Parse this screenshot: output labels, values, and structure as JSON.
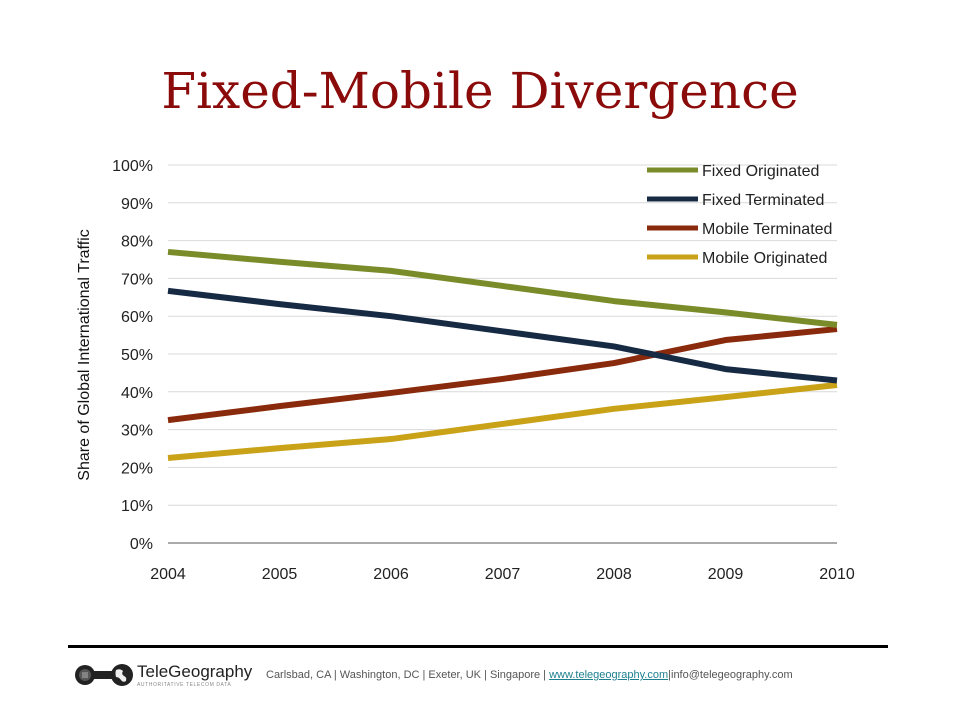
{
  "slide": {
    "title": "Fixed-Mobile Divergence"
  },
  "chart_data": {
    "type": "line",
    "title": "Fixed-Mobile Divergence",
    "xlabel": "",
    "ylabel": "Share of Global International Traffic",
    "x": [
      "2004",
      "2005",
      "2006",
      "2007",
      "2008",
      "2009",
      "2010"
    ],
    "ylim": [
      0,
      100
    ],
    "yticks": [
      "0%",
      "10%",
      "20%",
      "30%",
      "40%",
      "50%",
      "60%",
      "70%",
      "80%",
      "90%",
      "100%"
    ],
    "grid": true,
    "legend_position": "top-right",
    "series": [
      {
        "name": "Fixed Originated",
        "color": "#7a8c2a",
        "values": [
          77,
          74.4,
          72,
          68,
          64,
          61,
          57.7
        ]
      },
      {
        "name": "Fixed Terminated",
        "color": "#172a44",
        "values": [
          66.7,
          63.2,
          60,
          56,
          52,
          46,
          43
        ]
      },
      {
        "name": "Mobile Terminated",
        "color": "#8a2a0c",
        "values": [
          32.5,
          36.2,
          39.7,
          43.4,
          47.6,
          53.7,
          56.6
        ]
      },
      {
        "name": "Mobile Originated",
        "color": "#c9a217",
        "values": [
          22.5,
          25.1,
          27.5,
          31.5,
          35.5,
          38.6,
          41.8
        ]
      }
    ]
  },
  "footer": {
    "brand": "TeleGeography",
    "tagline": "AUTHORITATIVE TELECOM DATA",
    "locations": "Carlsbad, CA | Washington, DC | Exeter, UK | Singapore | ",
    "website": "www.telegeography.com",
    "separator": "|",
    "email": "info@telegeography.com"
  }
}
